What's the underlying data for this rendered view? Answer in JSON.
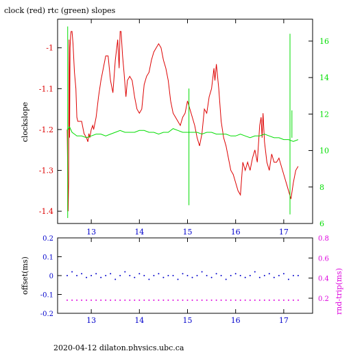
{
  "title": "clock (red) rtc (green) slopes",
  "footer": "2020-04-12 dilaton.physics.ubc.ca",
  "colors": {
    "red": "#dd0000",
    "green": "#00dd00",
    "blue": "#0000cc",
    "magenta": "#dd00dd",
    "axis": "#000000"
  },
  "chart_data": [
    {
      "type": "line",
      "ylabel": "clockslope",
      "y2label": "",
      "x_ticks": [
        "13",
        "14",
        "15",
        "16",
        "17"
      ],
      "y_ticks": [
        "-1",
        "-1.1",
        "-1.2",
        "-1.3",
        "-1.4"
      ],
      "y2_ticks": [
        "16",
        "14",
        "12",
        "10",
        "8",
        "6"
      ],
      "xlim": [
        12.3,
        17.6
      ],
      "ylim": [
        -1.43,
        -0.93
      ],
      "y2lim": [
        6,
        17.2
      ],
      "grid": false,
      "series": [
        {
          "name": "clock",
          "axis": "left",
          "x": [
            12.5,
            12.52,
            12.53,
            12.54,
            12.55,
            12.56,
            12.57,
            12.58,
            12.6,
            12.62,
            12.65,
            12.68,
            12.7,
            12.72,
            12.75,
            12.8,
            12.85,
            12.9,
            12.93,
            12.95,
            12.97,
            13.0,
            13.03,
            13.05,
            13.1,
            13.15,
            13.2,
            13.25,
            13.3,
            13.35,
            13.4,
            13.45,
            13.5,
            13.55,
            13.58,
            13.6,
            13.62,
            13.65,
            13.68,
            13.7,
            13.72,
            13.75,
            13.8,
            13.85,
            13.9,
            13.95,
            14.0,
            14.05,
            14.1,
            14.15,
            14.2,
            14.25,
            14.3,
            14.35,
            14.4,
            14.45,
            14.5,
            14.55,
            14.6,
            14.65,
            14.7,
            14.75,
            14.8,
            14.85,
            14.9,
            14.95,
            15.0,
            15.05,
            15.1,
            15.15,
            15.2,
            15.25,
            15.3,
            15.35,
            15.4,
            15.45,
            15.5,
            15.55,
            15.57,
            15.6,
            15.65,
            15.7,
            15.75,
            15.8,
            15.85,
            15.9,
            15.95,
            16.0,
            16.05,
            16.1,
            16.15,
            16.2,
            16.25,
            16.3,
            16.35,
            16.4,
            16.45,
            16.5,
            16.53,
            16.55,
            16.57,
            16.6,
            16.65,
            16.7,
            16.75,
            16.8,
            16.85,
            16.9,
            16.95,
            17.0,
            17.05,
            17.1,
            17.15,
            17.2,
            17.25,
            17.3
          ],
          "values": [
            -1.2,
            -1.4,
            -1.33,
            -0.98,
            -1.22,
            -1.0,
            -0.97,
            -0.96,
            -0.96,
            -0.99,
            -1.06,
            -1.1,
            -1.17,
            -1.18,
            -1.18,
            -1.18,
            -1.21,
            -1.22,
            -1.23,
            -1.21,
            -1.22,
            -1.2,
            -1.19,
            -1.2,
            -1.17,
            -1.12,
            -1.08,
            -1.05,
            -1.02,
            -1.02,
            -1.08,
            -1.11,
            -1.03,
            -0.98,
            -1.05,
            -0.96,
            -0.96,
            -1.02,
            -1.06,
            -1.09,
            -1.12,
            -1.08,
            -1.07,
            -1.08,
            -1.12,
            -1.15,
            -1.16,
            -1.15,
            -1.09,
            -1.07,
            -1.06,
            -1.03,
            -1.01,
            -1.0,
            -0.99,
            -1.0,
            -1.03,
            -1.05,
            -1.08,
            -1.13,
            -1.16,
            -1.17,
            -1.18,
            -1.19,
            -1.17,
            -1.16,
            -1.13,
            -1.15,
            -1.17,
            -1.19,
            -1.22,
            -1.24,
            -1.21,
            -1.15,
            -1.16,
            -1.12,
            -1.1,
            -1.05,
            -1.08,
            -1.04,
            -1.1,
            -1.18,
            -1.22,
            -1.24,
            -1.27,
            -1.3,
            -1.31,
            -1.33,
            -1.35,
            -1.36,
            -1.28,
            -1.3,
            -1.28,
            -1.3,
            -1.27,
            -1.25,
            -1.28,
            -1.19,
            -1.17,
            -1.22,
            -1.16,
            -1.23,
            -1.28,
            -1.3,
            -1.26,
            -1.28,
            -1.28,
            -1.27,
            -1.29,
            -1.31,
            -1.33,
            -1.35,
            -1.37,
            -1.33,
            -1.3,
            -1.29
          ]
        },
        {
          "name": "rtc",
          "axis": "right",
          "x": [
            12.5,
            12.55,
            12.6,
            12.65,
            12.7,
            12.8,
            12.9,
            13.0,
            13.1,
            13.2,
            13.3,
            13.4,
            13.5,
            13.6,
            13.7,
            13.8,
            13.9,
            14.0,
            14.1,
            14.2,
            14.3,
            14.4,
            14.5,
            14.6,
            14.7,
            14.8,
            14.9,
            15.0,
            15.1,
            15.2,
            15.3,
            15.4,
            15.5,
            15.6,
            15.7,
            15.8,
            15.9,
            16.0,
            16.1,
            16.2,
            16.3,
            16.4,
            16.5,
            16.6,
            16.7,
            16.8,
            16.9,
            17.0,
            17.1,
            17.2,
            17.3
          ],
          "values": [
            11.1,
            11.3,
            11.0,
            10.9,
            10.8,
            10.8,
            10.7,
            10.8,
            10.9,
            10.9,
            10.8,
            10.9,
            11.0,
            11.1,
            11.0,
            11.0,
            11.0,
            11.1,
            11.1,
            11.0,
            11.0,
            10.9,
            11.0,
            11.0,
            11.2,
            11.1,
            11.0,
            11.0,
            11.0,
            11.0,
            10.9,
            11.0,
            11.0,
            10.9,
            10.9,
            10.9,
            10.8,
            10.8,
            10.9,
            10.8,
            10.7,
            10.8,
            10.8,
            10.9,
            10.8,
            10.7,
            10.7,
            10.6,
            10.6,
            10.5,
            10.6
          ]
        }
      ],
      "spikes": [
        {
          "series": "rtc",
          "x": 12.51,
          "from": 6.3,
          "to": 16.8
        },
        {
          "series": "rtc",
          "x": 15.03,
          "from": 7.0,
          "to": 13.4
        },
        {
          "series": "rtc",
          "x": 17.13,
          "from": 6.5,
          "to": 16.4
        },
        {
          "series": "rtc",
          "x": 17.17,
          "from": 10.7,
          "to": 12.2
        }
      ]
    },
    {
      "type": "scatter",
      "ylabel": "offset(ms)",
      "y2label": "rnd-trip(ms)",
      "x_ticks": [
        "13",
        "14",
        "15",
        "16",
        "17"
      ],
      "y_ticks": [
        "0.2",
        "0.1",
        "0",
        "-0.1",
        "-0.2"
      ],
      "y2_ticks": [
        "0.8",
        "0.6",
        "0.4",
        "0.2"
      ],
      "xlim": [
        12.3,
        17.6
      ],
      "ylim": [
        -0.2,
        0.2
      ],
      "y2lim": [
        0.05,
        0.8
      ],
      "grid": false,
      "series": [
        {
          "name": "offset",
          "axis": "left",
          "x": [
            12.5,
            12.6,
            12.7,
            12.8,
            12.9,
            13.0,
            13.1,
            13.2,
            13.3,
            13.4,
            13.5,
            13.6,
            13.7,
            13.8,
            13.9,
            14.0,
            14.1,
            14.2,
            14.3,
            14.4,
            14.5,
            14.6,
            14.7,
            14.8,
            14.9,
            15.0,
            15.1,
            15.2,
            15.3,
            15.4,
            15.5,
            15.6,
            15.7,
            15.8,
            15.9,
            16.0,
            16.1,
            16.2,
            16.3,
            16.4,
            16.5,
            16.6,
            16.7,
            16.8,
            16.9,
            17.0,
            17.1,
            17.2,
            17.3
          ],
          "values": [
            0.0,
            0.02,
            0.0,
            0.01,
            -0.01,
            0.0,
            0.01,
            -0.01,
            0.0,
            0.01,
            -0.02,
            0.0,
            0.02,
            0.0,
            -0.01,
            0.01,
            0.0,
            -0.02,
            0.0,
            0.01,
            -0.01,
            0.0,
            0.0,
            -0.02,
            0.01,
            0.0,
            -0.01,
            0.0,
            0.02,
            0.0,
            -0.01,
            0.01,
            0.0,
            -0.02,
            0.0,
            0.01,
            0.0,
            -0.01,
            0.0,
            0.02,
            -0.01,
            0.0,
            0.01,
            -0.01,
            0.0,
            0.01,
            -0.02,
            0.0,
            0.0
          ]
        },
        {
          "name": "round-trip",
          "axis": "right",
          "x": [
            12.5,
            12.6,
            12.7,
            12.8,
            12.9,
            13.0,
            13.1,
            13.2,
            13.3,
            13.4,
            13.5,
            13.6,
            13.7,
            13.8,
            13.9,
            14.0,
            14.1,
            14.2,
            14.3,
            14.4,
            14.5,
            14.6,
            14.7,
            14.8,
            14.9,
            15.0,
            15.1,
            15.2,
            15.3,
            15.4,
            15.5,
            15.6,
            15.7,
            15.8,
            15.9,
            16.0,
            16.1,
            16.2,
            16.3,
            16.4,
            16.5,
            16.6,
            16.7,
            16.8,
            16.9,
            17.0,
            17.1,
            17.2,
            17.3
          ],
          "values": [
            0.18,
            0.18,
            0.18,
            0.18,
            0.18,
            0.18,
            0.18,
            0.18,
            0.18,
            0.18,
            0.18,
            0.18,
            0.18,
            0.18,
            0.18,
            0.18,
            0.18,
            0.18,
            0.18,
            0.18,
            0.18,
            0.18,
            0.18,
            0.18,
            0.18,
            0.18,
            0.18,
            0.18,
            0.18,
            0.18,
            0.18,
            0.18,
            0.18,
            0.18,
            0.18,
            0.18,
            0.18,
            0.18,
            0.18,
            0.18,
            0.18,
            0.18,
            0.18,
            0.18,
            0.18,
            0.18,
            0.18,
            0.18,
            0.18
          ]
        }
      ]
    }
  ]
}
